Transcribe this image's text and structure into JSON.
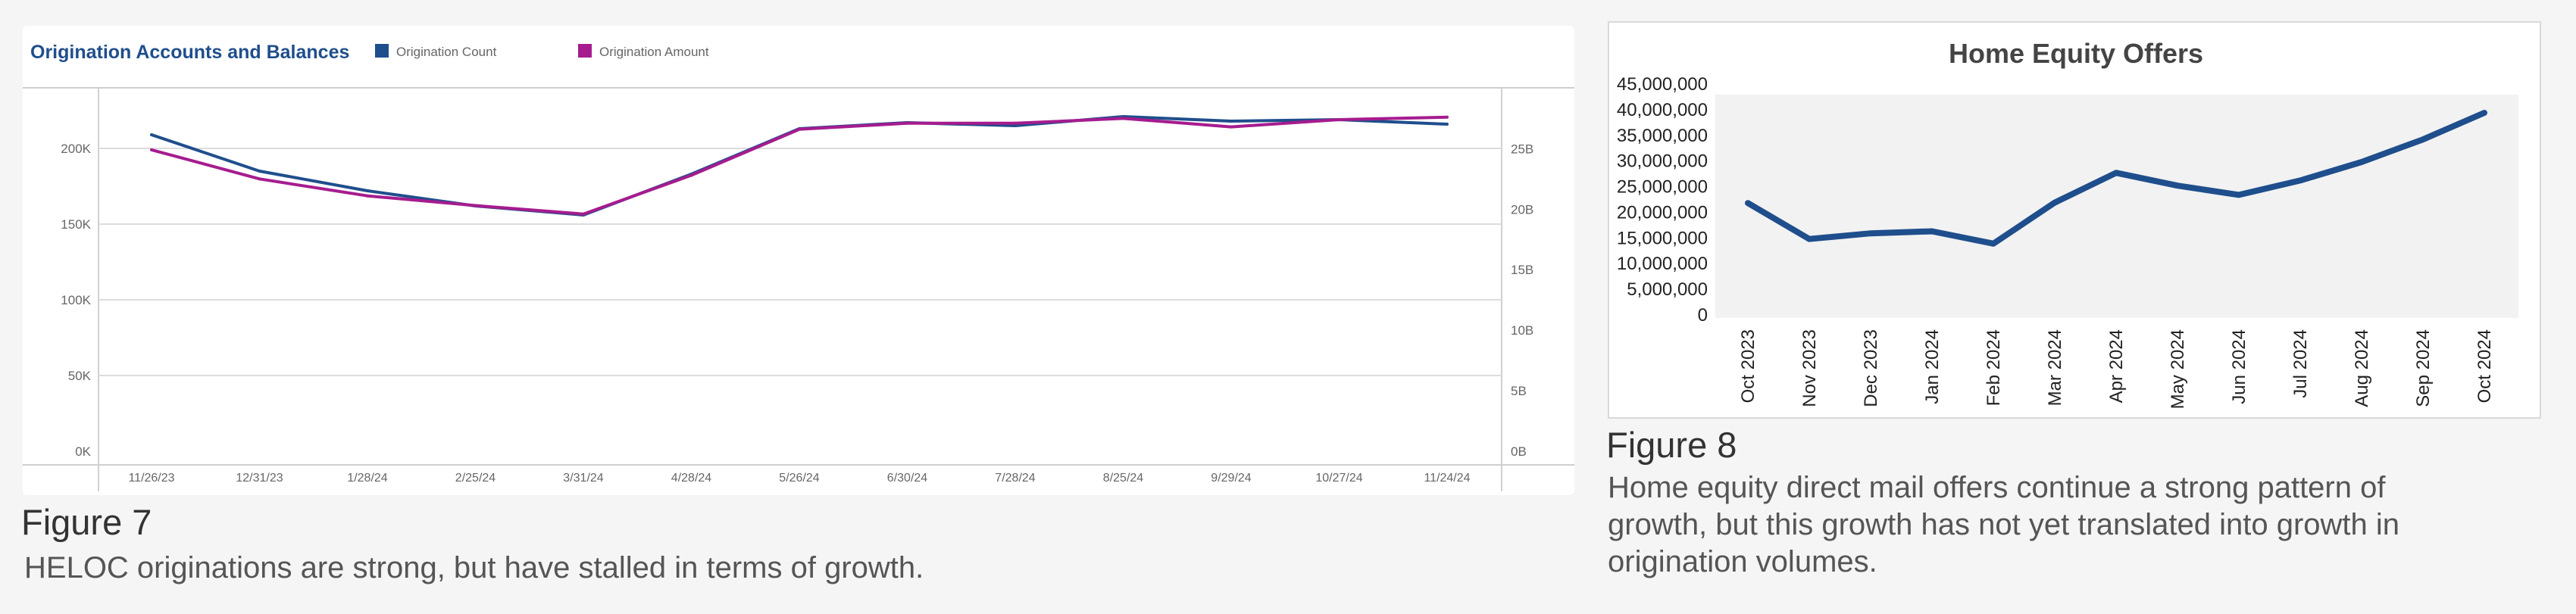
{
  "figure7": {
    "caption_title": "Figure 7",
    "caption_text": "HELOC originations are strong, but have stalled in terms of growth."
  },
  "figure8": {
    "caption_title": "Figure 8",
    "caption_text": "Home equity direct mail offers continue a strong pattern of growth, but this growth has not yet translated into growth in origination volumes."
  },
  "chart_data": [
    {
      "type": "line",
      "title": "Origination Accounts and Balances",
      "legend_placement": "top",
      "grid": true,
      "x": [
        "11/26/23",
        "12/31/23",
        "1/28/24",
        "2/25/24",
        "3/31/24",
        "4/28/24",
        "5/26/24",
        "6/30/24",
        "7/28/24",
        "8/25/24",
        "9/29/24",
        "10/27/24",
        "11/24/24"
      ],
      "y_left": {
        "ticks": [
          "0K",
          "50K",
          "100K",
          "150K",
          "200K"
        ],
        "tick_values": [
          0,
          50000,
          100000,
          150000,
          200000
        ],
        "lim": [
          0,
          235000
        ]
      },
      "y_right": {
        "ticks": [
          "0B",
          "5B",
          "10B",
          "15B",
          "20B",
          "25B"
        ],
        "tick_values": [
          0,
          5,
          10,
          15,
          20,
          25
        ],
        "lim": [
          0,
          29.4
        ]
      },
      "series": [
        {
          "name": "Origination Count",
          "axis": "left",
          "color": "#1f4e8c",
          "values": [
            209000,
            185000,
            172000,
            162000,
            156000,
            183000,
            213000,
            217000,
            215000,
            221000,
            218000,
            219000,
            216000
          ]
        },
        {
          "name": "Origination Amount",
          "axis": "right",
          "color": "#a61c8f",
          "values": [
            24.9,
            22.5,
            21.1,
            20.3,
            19.6,
            22.8,
            26.6,
            27.1,
            27.1,
            27.5,
            26.8,
            27.4,
            27.6
          ]
        }
      ]
    },
    {
      "type": "line",
      "title": "Home Equity Offers",
      "grid": false,
      "x": [
        "Oct 2023",
        "Nov 2023",
        "Dec 2023",
        "Jan 2024",
        "Feb 2024",
        "Mar 2024",
        "Apr 2024",
        "May 2024",
        "Jun 2024",
        "Jul 2024",
        "Aug 2024",
        "Sep 2024",
        "Oct 2024"
      ],
      "y_ticks": [
        "0",
        "5,000,000",
        "10,000,000",
        "15,000,000",
        "20,000,000",
        "25,000,000",
        "30,000,000",
        "35,000,000",
        "40,000,000",
        "45,000,000"
      ],
      "y_tick_values": [
        0,
        5000000,
        10000000,
        15000000,
        20000000,
        25000000,
        30000000,
        35000000,
        40000000,
        45000000
      ],
      "ylim": [
        0,
        45000000
      ],
      "series": [
        {
          "color": "#1f4e8c",
          "values": [
            21800000,
            14800000,
            15900000,
            16300000,
            13900000,
            21900000,
            27700000,
            25200000,
            23400000,
            26200000,
            29800000,
            34200000,
            39400000
          ]
        }
      ]
    }
  ]
}
